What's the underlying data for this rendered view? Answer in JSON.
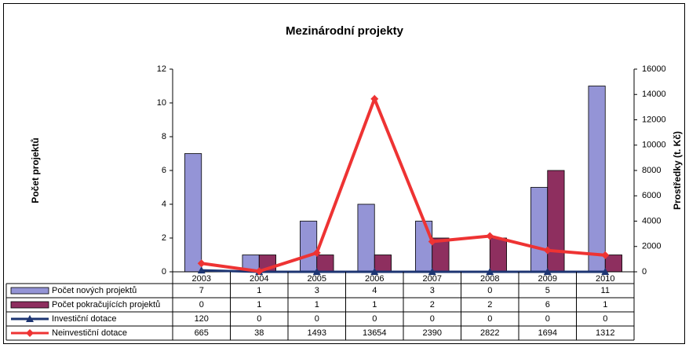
{
  "chart_data": {
    "type": "bar",
    "title": "Mezinárodní projekty",
    "y_label": "Počet projektů",
    "y2_label": "Prostředky (t. Kč)",
    "categories": [
      "2003",
      "2004",
      "2005",
      "2006",
      "2007",
      "2008",
      "2009",
      "2010"
    ],
    "series": [
      {
        "name": "Počet nových projektů",
        "type": "bar",
        "color": "#9494d6",
        "values": [
          7,
          1,
          3,
          4,
          3,
          0,
          5,
          11
        ]
      },
      {
        "name": "Počet pokračujících projektů",
        "type": "bar",
        "color": "#8e2f5f",
        "values": [
          0,
          1,
          1,
          1,
          2,
          2,
          6,
          1
        ]
      },
      {
        "name": "Investiční dotace",
        "type": "line",
        "axis": "y2",
        "marker": "triangle",
        "color": "#1d3572",
        "values": [
          120,
          0,
          0,
          0,
          0,
          0,
          0,
          0
        ]
      },
      {
        "name": "Neinvestiční dotace",
        "type": "line",
        "axis": "y2",
        "marker": "diamond",
        "color": "#ee3333",
        "values": [
          665,
          38,
          1493,
          13654,
          2390,
          2822,
          1694,
          1312
        ]
      }
    ],
    "ylim": [
      0,
      12
    ],
    "yticks": [
      0,
      2,
      4,
      6,
      8,
      10,
      12
    ],
    "y2lim": [
      0,
      16000
    ],
    "y2ticks": [
      0,
      2000,
      4000,
      6000,
      8000,
      10000,
      12000,
      14000,
      16000
    ],
    "data_table": true,
    "grid": false
  }
}
